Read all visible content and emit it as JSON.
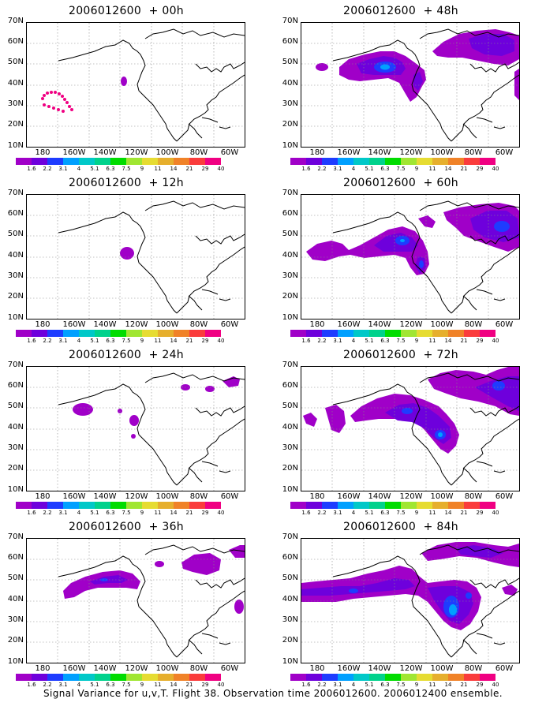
{
  "panels": [
    {
      "title": "2006012600  + 00h"
    },
    {
      "title": "2006012600  + 48h"
    },
    {
      "title": "2006012600  + 12h"
    },
    {
      "title": "2006012600  + 60h"
    },
    {
      "title": "2006012600  + 24h"
    },
    {
      "title": "2006012600  + 72h"
    },
    {
      "title": "2006012600  + 36h"
    },
    {
      "title": "2006012600  + 84h"
    }
  ],
  "lat_labels": [
    "70N",
    "60N",
    "50N",
    "40N",
    "30N",
    "20N",
    "10N"
  ],
  "lon_labels": [
    "180",
    "160W",
    "140W",
    "120W",
    "100W",
    "80W",
    "60W"
  ],
  "colorbar": {
    "labels": [
      "1.6",
      "2.2",
      "3.1",
      "4",
      "5.1",
      "6.3",
      "7.5",
      "9",
      "11",
      "14",
      "21",
      "29",
      "40"
    ],
    "colors": [
      "#a000c8",
      "#6e00dc",
      "#1e3cff",
      "#00a0ff",
      "#00c8c8",
      "#00d28c",
      "#00dc00",
      "#a0e632",
      "#e6dc32",
      "#e6af2d",
      "#f08228",
      "#fa3c3c",
      "#f00082"
    ]
  },
  "caption": "Signal Variance for u,v,T. Flight 38. Observation time 2006012600. 2006012400 ensemble."
}
